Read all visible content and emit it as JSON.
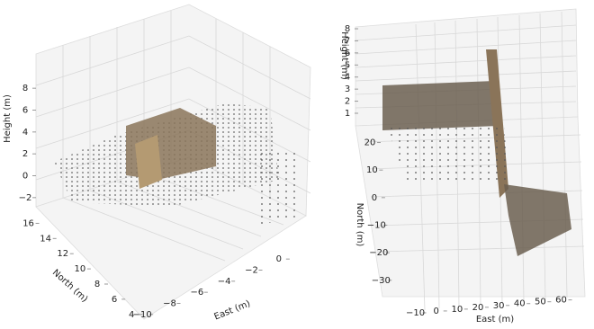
{
  "chart_data": [
    {
      "type": "scatter3d",
      "xlabel": "East (m)",
      "ylabel": "North (m)",
      "zlabel": "Height (m)",
      "xlim": [
        -11,
        1
      ],
      "ylim": [
        3.5,
        17
      ],
      "zlim": [
        -3,
        9
      ],
      "xticks": [
        {
          "value": -10,
          "label": "−10"
        },
        {
          "value": -8,
          "label": "−8"
        },
        {
          "value": -6,
          "label": "−6"
        },
        {
          "value": -4,
          "label": "−4"
        },
        {
          "value": -2,
          "label": "−2"
        },
        0
      ],
      "yticks": [
        4,
        6,
        8,
        10,
        12,
        14,
        16
      ],
      "zticks": [
        {
          "value": -2,
          "label": "−2"
        },
        0,
        2,
        4,
        6,
        8
      ]
    },
    {
      "type": "scatter3d",
      "xlabel": "East (m)",
      "ylabel": "North (m)",
      "zlabel": "Height (m)",
      "xlim": [
        -15,
        68
      ],
      "ylim": [
        -33,
        28
      ],
      "zlim": [
        0.5,
        8.5
      ],
      "xticks": [
        {
          "value": -10,
          "label": "−10"
        },
        0,
        10,
        20,
        30,
        40,
        50,
        60
      ],
      "yticks": [
        {
          "value": -30,
          "label": "−30"
        },
        {
          "value": -20,
          "label": "−20"
        },
        {
          "value": -10,
          "label": "−10"
        },
        0,
        10,
        20
      ],
      "zticks": [
        1,
        2,
        3,
        4,
        5,
        6,
        7,
        8
      ]
    }
  ]
}
